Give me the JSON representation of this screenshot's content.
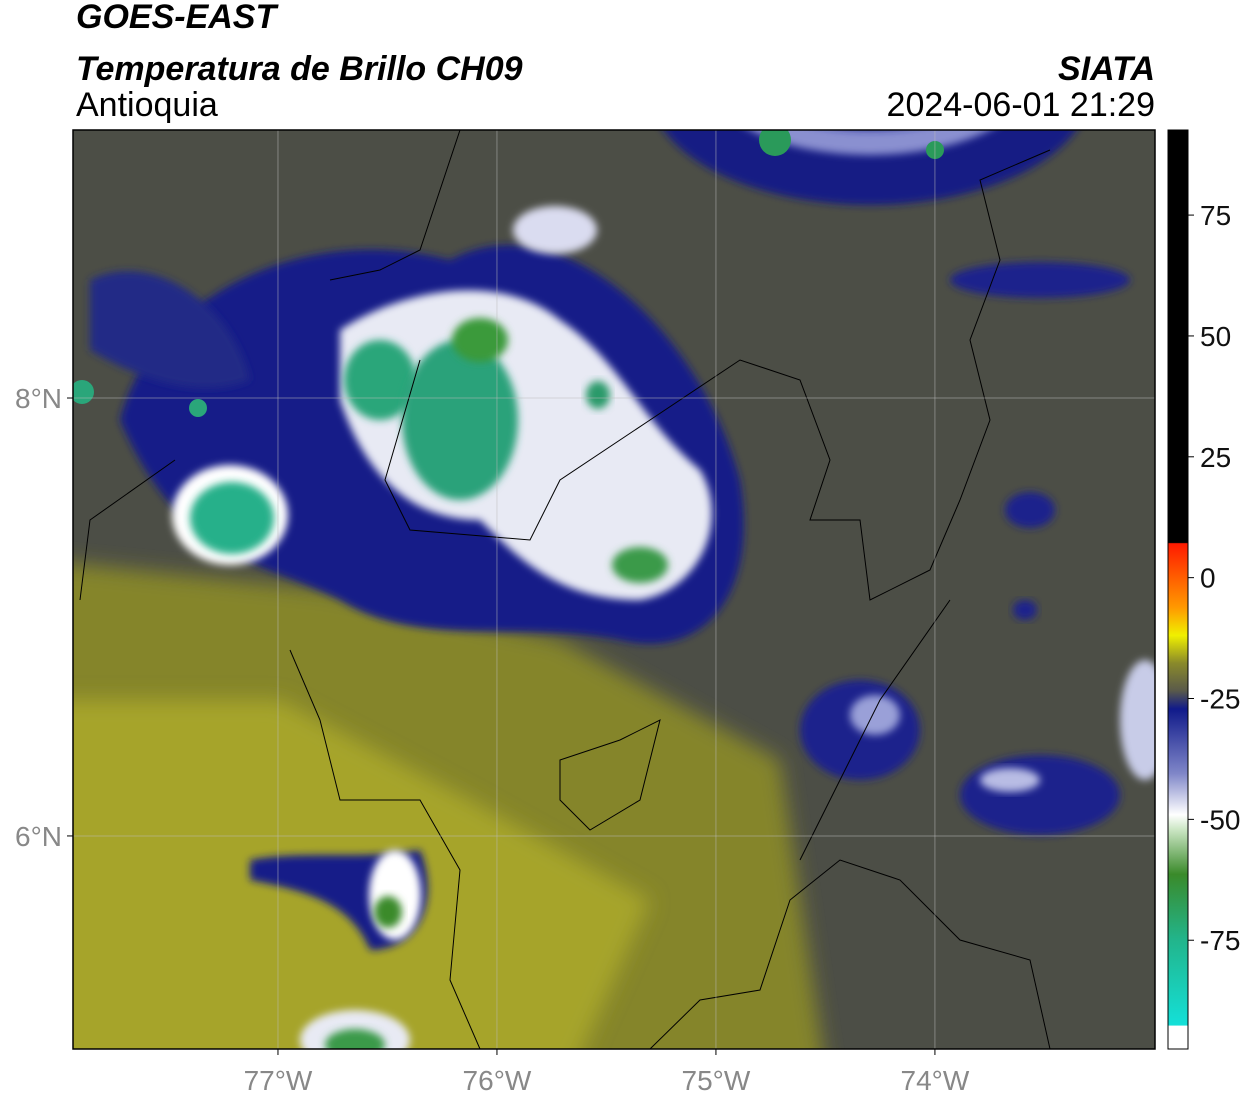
{
  "header": {
    "title": "GOES-EAST",
    "subtitle": "Temperatura de Brillo CH09",
    "region": "Antioquia",
    "source": "SIATA",
    "datetime": "2024-06-01 21:29"
  },
  "map": {
    "lon_range": [
      -77.936,
      -72.995
    ],
    "lat_range": [
      5.027,
      9.224
    ],
    "lon_ticks": [
      {
        "value": -77,
        "label": "77°W"
      },
      {
        "value": -76,
        "label": "76°W"
      },
      {
        "value": -75,
        "label": "75°W"
      },
      {
        "value": -74,
        "label": "74°W"
      }
    ],
    "lat_ticks": [
      {
        "value": 8,
        "label": "8°N"
      },
      {
        "value": 6,
        "label": "6°N"
      }
    ]
  },
  "colorbar": {
    "range": [
      -97.5,
      92.6
    ],
    "ticks": [
      75,
      50,
      25,
      0,
      -25,
      -50,
      -75
    ]
  }
}
